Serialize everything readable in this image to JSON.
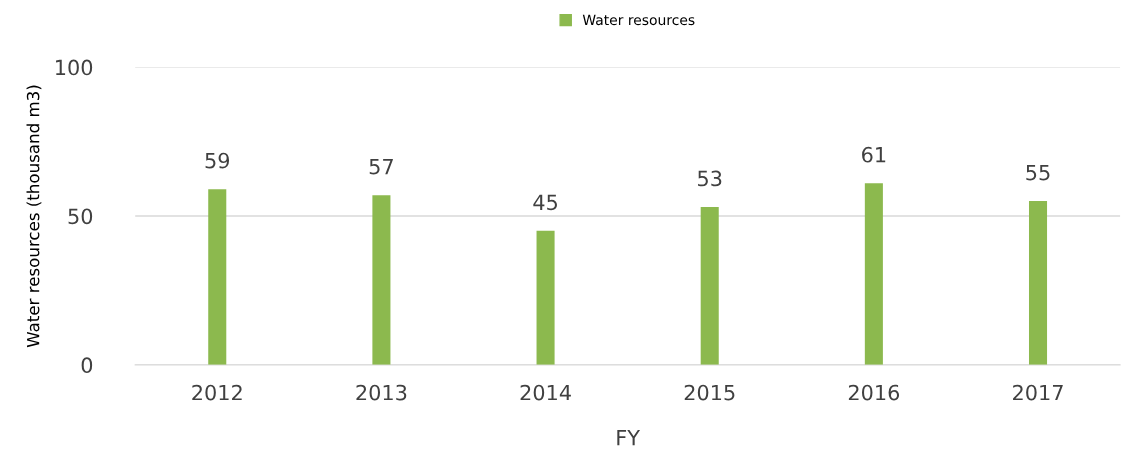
{
  "chart_data": {
    "type": "bar",
    "xlabel": "FY",
    "ylabel": "Water resources (thousand m3)",
    "categories": [
      "2012",
      "2013",
      "2014",
      "2015",
      "2016",
      "2017"
    ],
    "series": [
      {
        "name": "Water resources",
        "color": "#8cb94e",
        "values": [
          59,
          57,
          45,
          53,
          61,
          55
        ]
      }
    ],
    "ylim": [
      0,
      100
    ],
    "yticks": [
      0,
      50,
      100
    ],
    "grid": "y",
    "legend": "top",
    "data_labels": true
  }
}
